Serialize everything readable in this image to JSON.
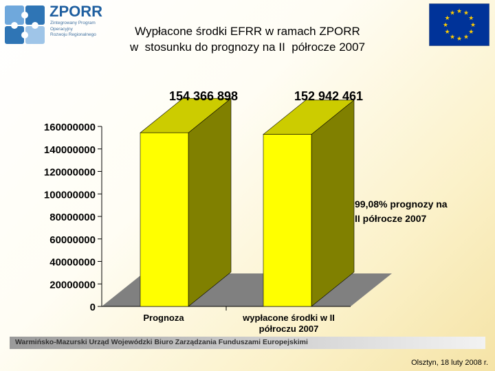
{
  "header": {
    "logo_title": "ZPORR",
    "logo_subtitle": "Zintegrowany Program\nOperacyjny\nRozwoju Regionalnego",
    "title_line1": "Wypłacone środki EFRR w ramach ZPORR",
    "title_line2": "w  stosunku do prognozy na II  półrocze 2007"
  },
  "chart_data": {
    "type": "bar",
    "categories": [
      "Prognoza",
      "wypłacone środki w II półroczu 2007"
    ],
    "values": [
      154366898,
      152942461
    ],
    "data_labels": [
      "154 366 898",
      "152 942 461"
    ],
    "yticks": [
      "0",
      "20000000",
      "40000000",
      "60000000",
      "80000000",
      "100000000",
      "120000000",
      "140000000",
      "160000000"
    ],
    "ylim": [
      0,
      160000000
    ],
    "annotation": "99,08% prognozy na II półrocze 2007",
    "colors": {
      "bar_front": "#ffff00",
      "bar_side": "#808000",
      "bar_top": "#cccc00",
      "floor": "#808080"
    }
  },
  "footer": {
    "institution": "Warmińsko-Mazurski Urząd Wojewódzki Biuro Zarządzania Funduszami Europejskimi",
    "date": "Olsztyn, 18 luty 2008 r."
  },
  "colors": {
    "eu_blue": "#003399",
    "eu_star": "#ffcc00",
    "logo_blue": "#1f5fa0",
    "logo_light_blue": "#6fa8dc"
  }
}
